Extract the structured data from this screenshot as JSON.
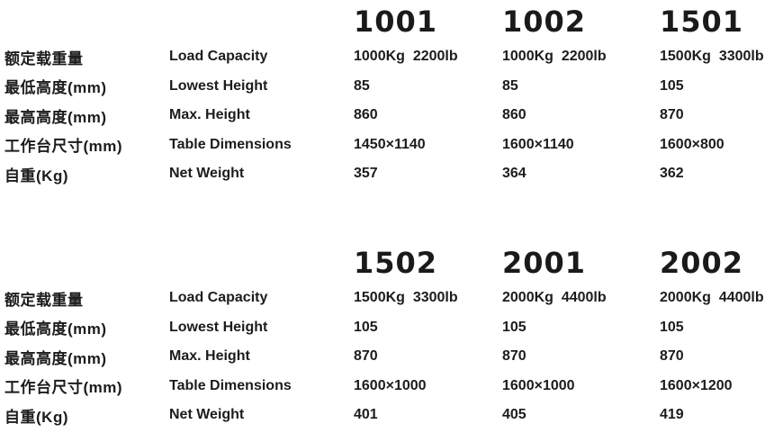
{
  "page": {
    "background": "#ffffff",
    "text_color": "#1c1c1c"
  },
  "row_labels": [
    {
      "cn": "额定载重量",
      "en": "Load Capacity"
    },
    {
      "cn": "最低高度(mm)",
      "en": "Lowest Height"
    },
    {
      "cn": "最高高度(mm)",
      "en": "Max. Height"
    },
    {
      "cn": "工作台尺寸(mm)",
      "en": "Table Dimensions"
    },
    {
      "cn": "自重(Kg)",
      "en": "Net Weight"
    }
  ],
  "tables": [
    {
      "models": [
        {
          "name": "1001",
          "values": [
            "1000Kg  2200lb",
            "85",
            "860",
            "1450×1140",
            "357"
          ]
        },
        {
          "name": "1002",
          "values": [
            "1000Kg  2200lb",
            "85",
            "860",
            "1600×1140",
            "364"
          ]
        },
        {
          "name": "1501",
          "values": [
            "1500Kg  3300lb",
            "105",
            "870",
            "1600×800",
            "362"
          ]
        }
      ]
    },
    {
      "models": [
        {
          "name": "1502",
          "values": [
            "1500Kg  3300lb",
            "105",
            "870",
            "1600×1000",
            "401"
          ]
        },
        {
          "name": "2001",
          "values": [
            "2000Kg  4400lb",
            "105",
            "870",
            "1600×1000",
            "405"
          ]
        },
        {
          "name": "2002",
          "values": [
            "2000Kg  4400lb",
            "105",
            "870",
            "1600×1200",
            "419"
          ]
        }
      ]
    }
  ]
}
